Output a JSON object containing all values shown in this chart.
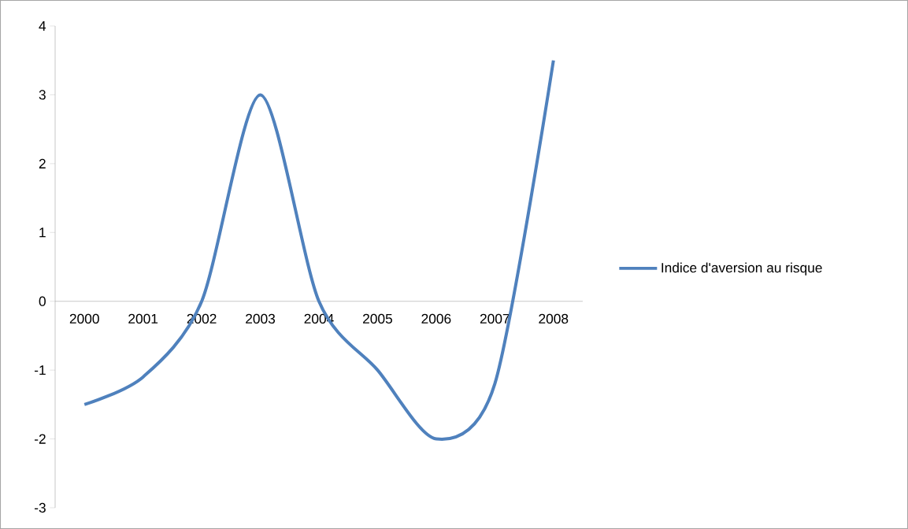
{
  "chart_data": {
    "type": "line",
    "categories": [
      "2000",
      "2001",
      "2002",
      "2003",
      "2004",
      "2005",
      "2006",
      "2007",
      "2008"
    ],
    "series": [
      {
        "name": "Indice d'aversion au risque",
        "color": "#4f81bd",
        "values": [
          -1.5,
          -1.1,
          0,
          3,
          0,
          -1,
          -2,
          -1.2,
          3.5
        ]
      }
    ],
    "ylim": [
      -3,
      4
    ],
    "yticks": [
      -3,
      -2,
      -1,
      0,
      1,
      2,
      3,
      4
    ],
    "grid": false,
    "legend": "right",
    "marker": "none",
    "line_style": "solid"
  }
}
